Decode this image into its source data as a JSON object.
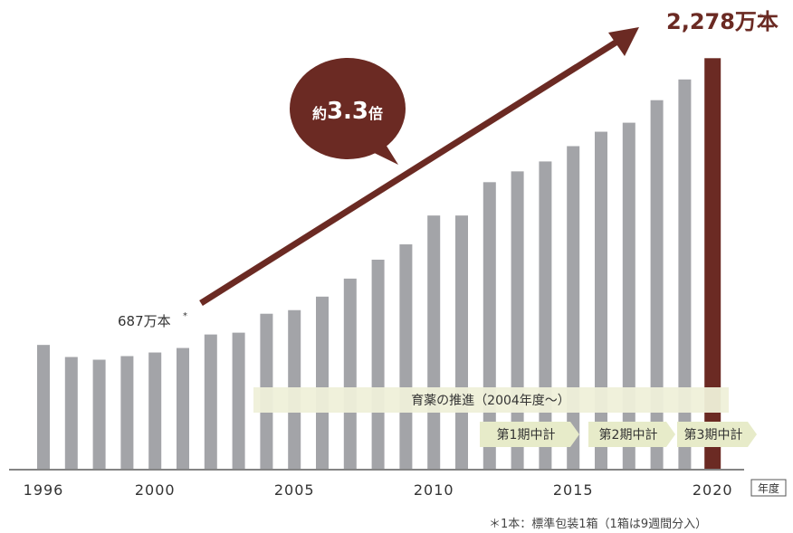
{
  "chart_data": {
    "type": "bar",
    "categories": [
      "1996",
      "1997",
      "1998",
      "1999",
      "2000",
      "2001",
      "2002",
      "2003",
      "2004",
      "2005",
      "2006",
      "2007",
      "2008",
      "2009",
      "2010",
      "2011",
      "2012",
      "2013",
      "2014",
      "2015",
      "2016",
      "2017",
      "2018",
      "2019",
      "2020"
    ],
    "values": [
      687,
      620,
      605,
      625,
      645,
      670,
      745,
      755,
      860,
      880,
      955,
      1055,
      1160,
      1245,
      1405,
      1405,
      1590,
      1650,
      1705,
      1790,
      1870,
      1920,
      2045,
      2160,
      2278
    ],
    "tick_labels": [
      "1996",
      "2000",
      "2005",
      "2010",
      "2015",
      "2020"
    ],
    "x_unit_label": "年度",
    "highlight_category": "2020",
    "first_value_label": "687万本",
    "first_value_mark": "*",
    "last_value_label": "2,278万本",
    "last_value_mark": "*",
    "growth_bubble": {
      "prefix": "約",
      "value": "3.3",
      "suffix": "倍"
    },
    "bands": {
      "main": "育薬の推進（2004年度～）",
      "phases": [
        "第1期中計",
        "第2期中計",
        "第3期中計"
      ]
    },
    "ylim": [
      0,
      2400
    ],
    "grid": false
  },
  "colors": {
    "bar": "#a3a4a8",
    "highlight": "#6b2a23",
    "band": "#eff0d9",
    "phase": "#e7ebc9",
    "axis": "#3a3a3a"
  },
  "footnote": "＊1本：標準包装1箱（1箱は9週間分入）"
}
